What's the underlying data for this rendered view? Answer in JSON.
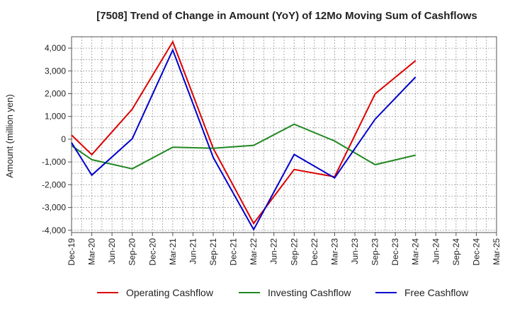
{
  "chart_data": {
    "type": "line",
    "title": "[7508]  Trend of Change in Amount (YoY) of 12Mo Moving Sum of Cashflows",
    "ylabel": "Amount (million yen)",
    "xlabel": "",
    "ylim": [
      -4100,
      4500
    ],
    "yticks": [
      4000,
      3000,
      2000,
      1000,
      0,
      -1000,
      -2000,
      -3000,
      -4000
    ],
    "ytick_labels": [
      "4,000",
      "3,000",
      "2,000",
      "1,000",
      "0",
      "-1,000",
      "-2,000",
      "-3,000",
      "-4,000"
    ],
    "categories": [
      "Dec-19",
      "Mar-20",
      "Jun-20",
      "Sep-20",
      "Dec-20",
      "Mar-21",
      "Jun-21",
      "Sep-21",
      "Dec-21",
      "Mar-22",
      "Jun-22",
      "Sep-22",
      "Dec-22",
      "Mar-23",
      "Jun-23",
      "Sep-23",
      "Dec-23",
      "Mar-24",
      "Jun-24",
      "Sep-24",
      "Dec-24",
      "Mar-25"
    ],
    "grid": true,
    "legend_position": "bottom",
    "series": [
      {
        "name": "Operating Cashflow",
        "color": "#dd0000",
        "values": [
          180,
          -680,
          null,
          1320,
          null,
          4280,
          null,
          -400,
          null,
          -3700,
          null,
          -1330,
          null,
          -1650,
          null,
          1990,
          null,
          3450,
          null,
          null,
          null,
          null
        ]
      },
      {
        "name": "Investing Cashflow",
        "color": "#228822",
        "values": [
          -280,
          -900,
          null,
          -1300,
          null,
          -350,
          null,
          -400,
          null,
          -270,
          null,
          660,
          null,
          -80,
          null,
          -1120,
          null,
          -700,
          null,
          null,
          null,
          null
        ]
      },
      {
        "name": "Free Cashflow",
        "color": "#0000cc",
        "values": [
          -150,
          -1580,
          null,
          20,
          null,
          3920,
          null,
          -800,
          null,
          -3970,
          null,
          -670,
          null,
          -1700,
          null,
          880,
          null,
          2730,
          null,
          null,
          null,
          null
        ]
      }
    ]
  }
}
